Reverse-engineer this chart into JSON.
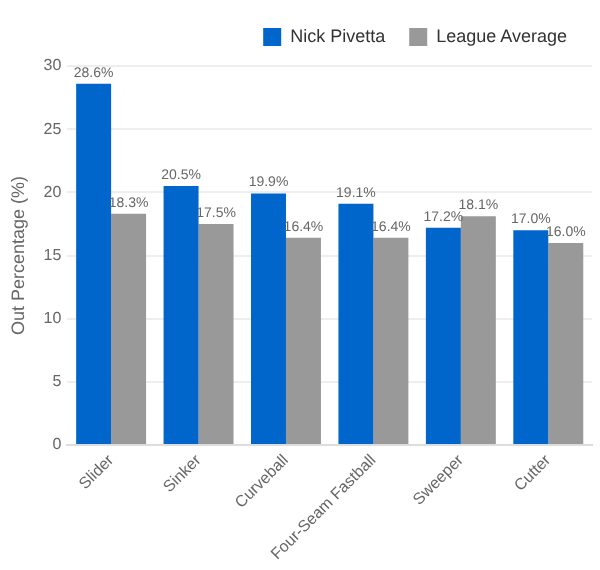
{
  "chart_data": {
    "type": "bar",
    "ylabel": "Out Percentage (%)",
    "categories": [
      "Slider",
      "Sinker",
      "Curveball",
      "Four-Seam Fastball",
      "Sweeper",
      "Cutter"
    ],
    "series": [
      {
        "name": "Nick Pivetta",
        "color": "#0066cc",
        "values": [
          28.6,
          20.5,
          19.9,
          19.1,
          17.2,
          17.0
        ],
        "value_labels": [
          "28.6%",
          "20.5%",
          "19.9%",
          "19.1%",
          "17.2%",
          "17.0%"
        ]
      },
      {
        "name": "League Average",
        "color": "#999999",
        "values": [
          18.3,
          17.5,
          16.4,
          16.4,
          18.1,
          16.0
        ],
        "value_labels": [
          "18.3%",
          "17.5%",
          "16.4%",
          "16.4%",
          "18.1%",
          "16.0%"
        ]
      }
    ],
    "ylim": [
      0,
      30
    ],
    "yticks": [
      0,
      5,
      10,
      15,
      20,
      25,
      30
    ],
    "grid": "y",
    "legend": "top right"
  }
}
